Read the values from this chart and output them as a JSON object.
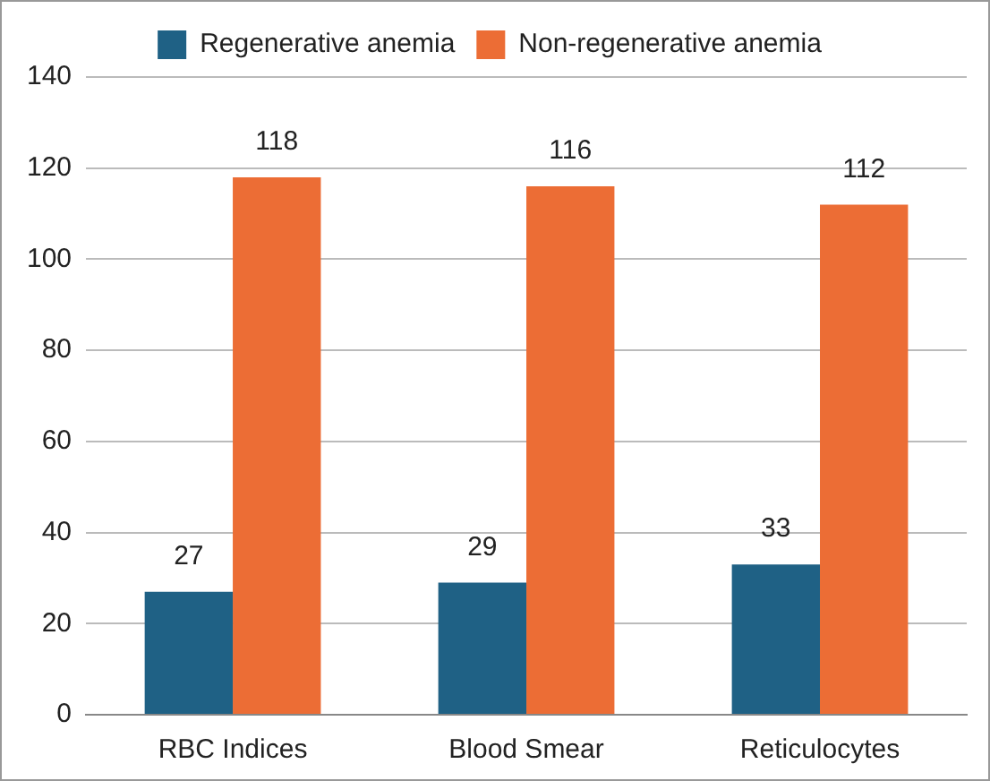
{
  "chart_data": {
    "type": "bar",
    "categories": [
      "RBC Indices",
      "Blood Smear",
      "Reticulocytes"
    ],
    "series": [
      {
        "name": "Regenerative anemia",
        "color": "#1f6185",
        "values": [
          27,
          29,
          33
        ]
      },
      {
        "name": "Non-regenerative anemia",
        "color": "#ec6d35",
        "values": [
          118,
          116,
          112
        ]
      }
    ],
    "ylim": [
      0,
      140
    ],
    "yticks": [
      0,
      20,
      40,
      60,
      80,
      100,
      120,
      140
    ],
    "grid": "y",
    "legend": "top",
    "data_labels": true
  }
}
